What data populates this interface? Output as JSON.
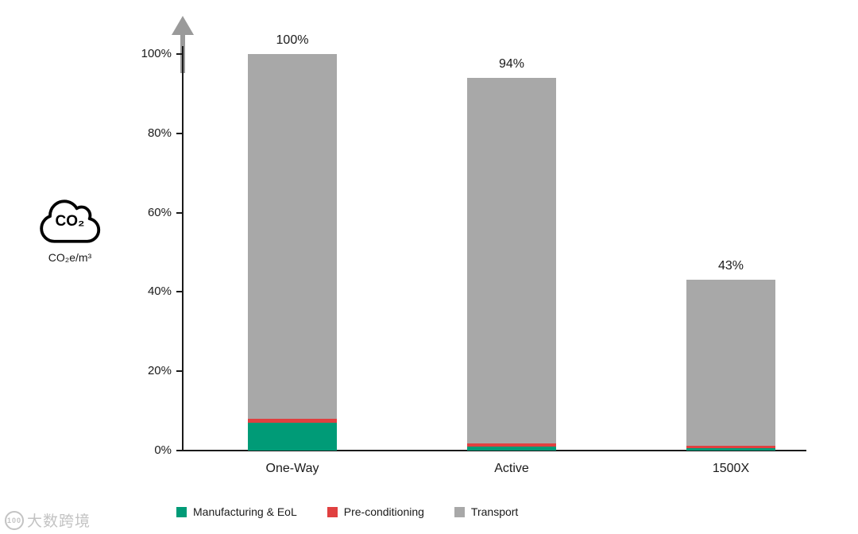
{
  "axis_icon": {
    "label": "CO₂",
    "sublabel": "CO₂e/m³"
  },
  "watermark": {
    "logo": "100",
    "text": "大数跨境"
  },
  "chart_data": {
    "type": "bar",
    "stacked": true,
    "title": "",
    "xlabel": "",
    "ylabel": "CO₂e/m³",
    "ylim": [
      0,
      100
    ],
    "grid": false,
    "legend_position": "bottom",
    "categories": [
      "One-Way",
      "Active",
      "1500X"
    ],
    "yticks": [
      {
        "value": 0,
        "label": "0%"
      },
      {
        "value": 20,
        "label": "20%"
      },
      {
        "value": 40,
        "label": "40%"
      },
      {
        "value": 60,
        "label": "60%"
      },
      {
        "value": 80,
        "label": "80%"
      },
      {
        "value": 100,
        "label": "100%"
      }
    ],
    "series": [
      {
        "name": "Manufacturing & EoL",
        "color": "#009b77",
        "values": [
          7.0,
          1.0,
          0.6
        ]
      },
      {
        "name": "Pre-conditioning",
        "color": "#e04040",
        "values": [
          1.0,
          0.8,
          0.7
        ]
      },
      {
        "name": "Transport",
        "color": "#a8a8a8",
        "values": [
          92.0,
          92.2,
          41.7
        ]
      }
    ],
    "totals": [
      {
        "label": "100%",
        "value": 100
      },
      {
        "label": "94%",
        "value": 94
      },
      {
        "label": "43%",
        "value": 43
      }
    ],
    "colors": {
      "axis": "#1a1a1a",
      "arrow": "#9a9a9a",
      "bar_gray": "#a8a8a8"
    }
  }
}
